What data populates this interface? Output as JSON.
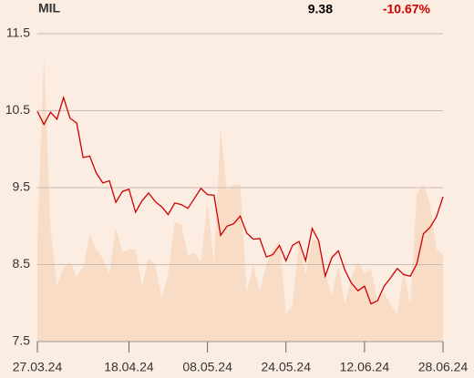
{
  "chart_data": {
    "type": "line",
    "title": "MIL",
    "last": "9.38",
    "change": "-10.67%",
    "change_color": "#cc0000",
    "color": "#cc0000",
    "grid": true,
    "categories": [
      "27.03.24",
      null,
      null,
      null,
      null,
      null,
      null,
      null,
      null,
      null,
      null,
      null,
      null,
      null,
      "18.04.24",
      null,
      null,
      null,
      null,
      null,
      null,
      null,
      null,
      null,
      null,
      null,
      "08.05.24",
      null,
      null,
      null,
      null,
      null,
      null,
      null,
      null,
      null,
      null,
      null,
      "24.05.24",
      null,
      null,
      null,
      null,
      null,
      null,
      null,
      null,
      null,
      null,
      null,
      "12.06.24",
      null,
      null,
      null,
      null,
      null,
      null,
      null,
      null,
      null,
      null,
      null,
      "28.06.24"
    ],
    "values": [
      10.49,
      10.32,
      10.48,
      10.39,
      10.67,
      10.4,
      10.34,
      9.89,
      9.91,
      9.69,
      9.56,
      9.59,
      9.31,
      9.45,
      9.48,
      9.18,
      9.33,
      9.43,
      9.32,
      9.25,
      9.15,
      9.3,
      9.28,
      9.23,
      9.36,
      9.49,
      9.41,
      9.4,
      8.88,
      9.0,
      9.03,
      9.13,
      8.91,
      8.83,
      8.84,
      8.6,
      8.63,
      8.75,
      8.55,
      8.75,
      8.8,
      8.55,
      8.97,
      8.81,
      8.35,
      8.59,
      8.68,
      8.43,
      8.26,
      8.16,
      8.22,
      7.99,
      8.03,
      8.22,
      8.33,
      8.45,
      8.37,
      8.35,
      8.51,
      8.9,
      8.98,
      9.12,
      9.38
    ],
    "volume": {
      "color": "#f8dcc6",
      "lim": [
        0,
        100
      ],
      "values": [
        33,
        93,
        37,
        18,
        24,
        26,
        21,
        24,
        35,
        30,
        27,
        22,
        37,
        29,
        30,
        30,
        18,
        27,
        25,
        14,
        22,
        39,
        38,
        28,
        29,
        26,
        45,
        25,
        69,
        49,
        51,
        51,
        16,
        25,
        16,
        25,
        30,
        33,
        9,
        12,
        33,
        22,
        33,
        33,
        22,
        15,
        25,
        12,
        21,
        26,
        22,
        24,
        13,
        16,
        12,
        9,
        23,
        12,
        48,
        51,
        45,
        30,
        28
      ]
    },
    "ylim": [
      7.5,
      11.5
    ],
    "yticks": [
      7.5,
      8.5,
      9.5,
      10.5,
      11.5
    ]
  }
}
